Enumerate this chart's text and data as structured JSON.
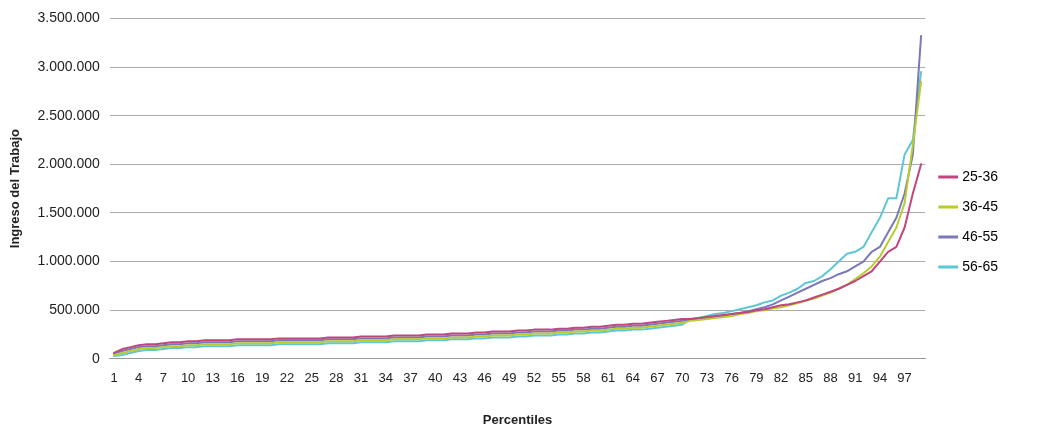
{
  "chart_data": {
    "type": "line",
    "xlabel": "Percentiles",
    "ylabel": "Ingreso del Trabajo",
    "categories": [
      "1",
      null,
      null,
      "4",
      null,
      null,
      "7",
      null,
      null,
      "10",
      null,
      null,
      "13",
      null,
      null,
      "16",
      null,
      null,
      "19",
      null,
      null,
      "22",
      null,
      null,
      "25",
      null,
      null,
      "28",
      null,
      null,
      "31",
      null,
      null,
      "34",
      null,
      null,
      "37",
      null,
      null,
      "40",
      null,
      null,
      "43",
      null,
      null,
      "46",
      null,
      null,
      "49",
      null,
      null,
      "52",
      null,
      null,
      "55",
      null,
      null,
      "58",
      null,
      null,
      "61",
      null,
      null,
      "64",
      null,
      null,
      "67",
      null,
      null,
      "70",
      null,
      null,
      "73",
      null,
      null,
      "76",
      null,
      null,
      "79",
      null,
      null,
      "82",
      null,
      null,
      "85",
      null,
      null,
      "88",
      null,
      null,
      "91",
      null,
      null,
      "94",
      null,
      null,
      "97",
      null,
      null
    ],
    "ylim": [
      0,
      3500000
    ],
    "yticks": [
      0,
      {
        "value": 500000,
        "label": "500.000"
      },
      {
        "value": 1000000,
        "label": "1.000.000"
      },
      {
        "value": 1500000,
        "label": "1.500.000"
      },
      {
        "value": 2000000,
        "label": "2.000.000"
      },
      {
        "value": 2500000,
        "label": "2.500.000"
      },
      {
        "value": 3000000,
        "label": "3.000.000"
      },
      {
        "value": 3500000,
        "label": "3.500.000"
      }
    ],
    "grid": "y",
    "legend": "right",
    "marker": "none",
    "series": [
      {
        "name": "25-36",
        "color": "#c0467e",
        "values": [
          60000,
          100000,
          120000,
          140000,
          150000,
          150000,
          160000,
          170000,
          170000,
          180000,
          180000,
          190000,
          190000,
          190000,
          190000,
          200000,
          200000,
          200000,
          200000,
          200000,
          210000,
          210000,
          210000,
          210000,
          210000,
          210000,
          220000,
          220000,
          220000,
          220000,
          230000,
          230000,
          230000,
          230000,
          240000,
          240000,
          240000,
          240000,
          250000,
          250000,
          250000,
          260000,
          260000,
          260000,
          270000,
          270000,
          280000,
          280000,
          280000,
          290000,
          290000,
          300000,
          300000,
          300000,
          310000,
          310000,
          320000,
          320000,
          330000,
          330000,
          340000,
          350000,
          350000,
          360000,
          360000,
          370000,
          380000,
          390000,
          400000,
          410000,
          410000,
          420000,
          430000,
          440000,
          450000,
          460000,
          470000,
          480000,
          500000,
          510000,
          530000,
          550000,
          560000,
          580000,
          600000,
          630000,
          660000,
          690000,
          720000,
          760000,
          800000,
          850000,
          900000,
          1000000,
          1100000,
          1150000,
          1350000,
          1700000,
          2000000
        ]
      },
      {
        "name": "36-45",
        "color": "#b8cc2e",
        "values": [
          40000,
          60000,
          80000,
          100000,
          110000,
          110000,
          120000,
          130000,
          130000,
          140000,
          140000,
          150000,
          150000,
          150000,
          150000,
          160000,
          160000,
          160000,
          160000,
          160000,
          170000,
          170000,
          170000,
          170000,
          170000,
          170000,
          180000,
          180000,
          180000,
          180000,
          190000,
          190000,
          190000,
          190000,
          200000,
          200000,
          200000,
          200000,
          210000,
          210000,
          210000,
          220000,
          220000,
          220000,
          230000,
          230000,
          240000,
          240000,
          240000,
          250000,
          250000,
          260000,
          260000,
          260000,
          270000,
          270000,
          280000,
          280000,
          290000,
          290000,
          300000,
          310000,
          310000,
          320000,
          320000,
          330000,
          340000,
          350000,
          360000,
          370000,
          390000,
          400000,
          410000,
          420000,
          430000,
          440000,
          460000,
          470000,
          490000,
          500000,
          520000,
          530000,
          550000,
          570000,
          600000,
          620000,
          650000,
          680000,
          720000,
          760000,
          820000,
          880000,
          950000,
          1050000,
          1200000,
          1350000,
          1600000,
          2200000,
          2850000
        ]
      },
      {
        "name": "46-55",
        "color": "#7a78b8",
        "values": [
          50000,
          80000,
          100000,
          120000,
          130000,
          130000,
          140000,
          150000,
          150000,
          160000,
          160000,
          170000,
          170000,
          170000,
          170000,
          180000,
          180000,
          180000,
          180000,
          180000,
          190000,
          190000,
          190000,
          190000,
          190000,
          190000,
          200000,
          200000,
          200000,
          200000,
          210000,
          210000,
          210000,
          210000,
          220000,
          220000,
          220000,
          220000,
          230000,
          230000,
          230000,
          240000,
          240000,
          240000,
          250000,
          250000,
          260000,
          260000,
          260000,
          270000,
          270000,
          280000,
          280000,
          280000,
          290000,
          290000,
          300000,
          300000,
          310000,
          310000,
          320000,
          330000,
          330000,
          340000,
          340000,
          350000,
          360000,
          370000,
          380000,
          390000,
          400000,
          410000,
          420000,
          430000,
          440000,
          460000,
          470000,
          490000,
          510000,
          530000,
          560000,
          600000,
          640000,
          680000,
          720000,
          760000,
          800000,
          830000,
          870000,
          900000,
          950000,
          1000000,
          1100000,
          1150000,
          1300000,
          1450000,
          1700000,
          2100000,
          3320000
        ]
      },
      {
        "name": "56-65",
        "color": "#5ec6d4",
        "values": [
          30000,
          40000,
          60000,
          80000,
          90000,
          90000,
          100000,
          110000,
          110000,
          120000,
          120000,
          130000,
          130000,
          130000,
          130000,
          140000,
          140000,
          140000,
          140000,
          140000,
          150000,
          150000,
          150000,
          150000,
          150000,
          150000,
          160000,
          160000,
          160000,
          160000,
          170000,
          170000,
          170000,
          170000,
          180000,
          180000,
          180000,
          180000,
          190000,
          190000,
          190000,
          200000,
          200000,
          200000,
          210000,
          210000,
          220000,
          220000,
          220000,
          230000,
          230000,
          240000,
          240000,
          240000,
          250000,
          250000,
          260000,
          260000,
          270000,
          270000,
          280000,
          290000,
          290000,
          300000,
          300000,
          310000,
          320000,
          330000,
          340000,
          350000,
          410000,
          420000,
          440000,
          460000,
          470000,
          490000,
          510000,
          530000,
          550000,
          580000,
          600000,
          650000,
          680000,
          720000,
          780000,
          800000,
          850000,
          920000,
          1000000,
          1080000,
          1100000,
          1150000,
          1300000,
          1450000,
          1650000,
          1650000,
          2100000,
          2250000,
          2950000
        ]
      }
    ]
  }
}
